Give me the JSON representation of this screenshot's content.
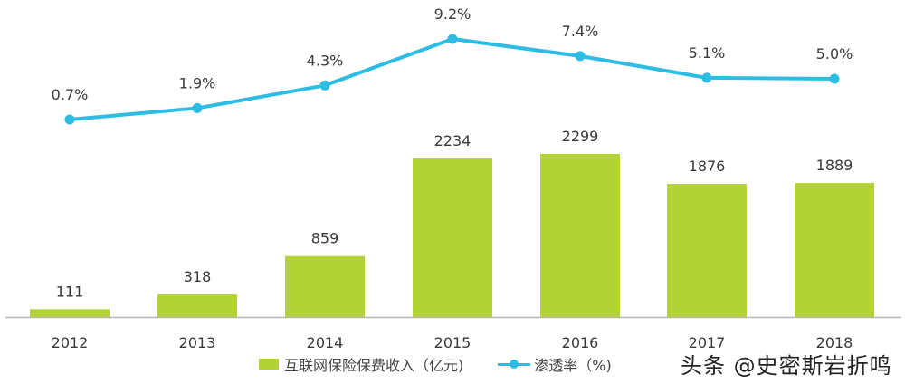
{
  "chart_data": {
    "type": "bar+line",
    "categories": [
      "2012",
      "2013",
      "2014",
      "2015",
      "2016",
      "2017",
      "2018"
    ],
    "series": [
      {
        "name": "互联网保险保费收入（亿元)",
        "type": "bar",
        "axis": "left",
        "color": "#b2d235",
        "values": [
          111,
          318,
          859,
          2234,
          2299,
          1876,
          1889
        ],
        "labels": [
          "111",
          "318",
          "859",
          "2234",
          "2299",
          "1876",
          "1889"
        ]
      },
      {
        "name": "渗透率（%)",
        "type": "line",
        "axis": "right",
        "color": "#2dbde4",
        "values": [
          0.7,
          1.9,
          4.3,
          9.2,
          7.4,
          5.1,
          5.0
        ],
        "labels": [
          "0.7%",
          "1.9%",
          "4.3%",
          "9.2%",
          "7.4%",
          "5.1%",
          "5.0%"
        ]
      }
    ],
    "title": "",
    "xlabel": "",
    "ylabel": "",
    "grid": false,
    "legend_position": "bottom"
  },
  "legend": {
    "bar_label": "互联网保险保费收入（亿元)",
    "line_label": "渗透率（%)"
  },
  "watermark": "头条 @史密斯岩折鸣"
}
